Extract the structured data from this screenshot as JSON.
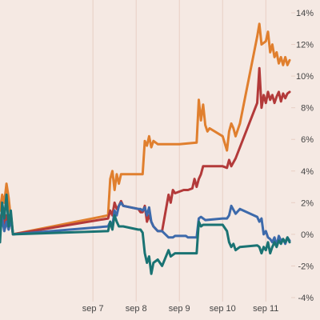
{
  "chart_data": {
    "type": "line",
    "title": "",
    "xlabel": "",
    "ylabel": "",
    "x_tick_labels": [
      "sep 7",
      "sep 8",
      "sep 9",
      "sep 10",
      "sep 11"
    ],
    "x_tick_values": [
      0,
      1,
      2,
      3,
      4
    ],
    "xlim": [
      -2.15,
      4.55
    ],
    "y_tick_labels": [
      "14%",
      "12%",
      "10%",
      "8%",
      "6%",
      "4%",
      "2%",
      "0%",
      "-2%",
      "-4%"
    ],
    "y_tick_values": [
      14,
      12,
      10,
      8,
      6,
      4,
      2,
      0,
      -2,
      -4
    ],
    "ylim": [
      -4,
      14
    ],
    "y_axis_side": "right",
    "grid": {
      "vertical": true,
      "horizontal": false
    },
    "legend": "none",
    "colors": {
      "background": "#f5e9e3",
      "grid": "#e8cfc4",
      "axis_text": "#444444"
    },
    "series": [
      {
        "color": "#e07f2e",
        "x": [
          -2.15,
          -2.1,
          -2.05,
          -2.0,
          -1.95,
          -1.9,
          -1.85,
          0.35,
          0.4,
          0.45,
          0.5,
          0.55,
          0.6,
          0.65,
          0.7,
          1.05,
          1.1,
          1.15,
          1.2,
          1.25,
          1.3,
          1.35,
          1.4,
          1.5,
          1.6,
          1.75,
          1.8,
          1.85,
          1.9,
          2.0,
          2.4,
          2.45,
          2.5,
          2.55,
          2.6,
          2.65,
          2.7,
          3.0,
          3.1,
          3.15,
          3.2,
          3.25,
          3.3,
          3.4,
          3.8,
          3.85,
          3.9,
          4.0,
          4.05,
          4.1,
          4.15,
          4.2,
          4.25,
          4.3,
          4.35,
          4.4,
          4.45,
          4.5,
          4.55
        ],
        "values": [
          1.5,
          2.5,
          2.0,
          3.2,
          2.3,
          1.0,
          0.0,
          1.2,
          3.5,
          4.0,
          2.8,
          3.8,
          3.2,
          3.8,
          3.8,
          3.8,
          3.8,
          3.8,
          5.9,
          5.6,
          6.2,
          5.5,
          5.9,
          5.7,
          5.7,
          5.7,
          5.7,
          5.7,
          5.7,
          5.7,
          5.8,
          8.5,
          7.2,
          8.2,
          6.9,
          6.5,
          6.7,
          6.2,
          5.3,
          6.5,
          7.0,
          6.7,
          6.2,
          7.0,
          12.5,
          13.3,
          12.0,
          12.2,
          12.8,
          11.5,
          12.0,
          11.2,
          11.5,
          10.8,
          11.2,
          10.7,
          11.2,
          10.7,
          11.0
        ]
      },
      {
        "color": "#b33a3a",
        "x": [
          -2.15,
          -2.1,
          -2.05,
          -2.0,
          -1.95,
          -1.9,
          -1.85,
          0.35,
          0.4,
          0.45,
          0.5,
          0.55,
          0.6,
          0.65,
          0.7,
          1.05,
          1.1,
          1.15,
          1.2,
          1.25,
          1.3,
          1.35,
          1.4,
          1.5,
          1.6,
          1.75,
          1.8,
          1.85,
          1.9,
          2.0,
          2.1,
          2.2,
          2.3,
          2.35,
          2.4,
          2.45,
          2.5,
          2.55,
          2.6,
          3.0,
          3.1,
          3.15,
          3.2,
          3.3,
          3.8,
          3.85,
          3.9,
          3.95,
          4.0,
          4.05,
          4.1,
          4.15,
          4.2,
          4.25,
          4.3,
          4.35,
          4.4,
          4.45,
          4.5,
          4.55
        ],
        "values": [
          0.8,
          1.5,
          0.5,
          1.2,
          0.5,
          1.3,
          0.0,
          1.0,
          1.5,
          1.2,
          2.0,
          1.6,
          1.8,
          2.1,
          1.8,
          1.6,
          1.4,
          1.4,
          1.8,
          0.8,
          1.2,
          0.8,
          0.5,
          0.2,
          0.2,
          2.5,
          2.0,
          2.8,
          2.6,
          2.7,
          2.8,
          2.8,
          2.9,
          3.5,
          3.0,
          3.5,
          3.8,
          4.3,
          4.3,
          4.3,
          4.2,
          4.7,
          4.3,
          4.8,
          8.3,
          10.5,
          8.0,
          8.8,
          8.3,
          9.0,
          8.5,
          8.8,
          8.3,
          8.7,
          9.0,
          8.4,
          8.9,
          8.6,
          8.9,
          9.0
        ]
      },
      {
        "color": "#3d6aab",
        "x": [
          -2.15,
          -2.1,
          -2.05,
          -2.0,
          -1.95,
          -1.9,
          -1.85,
          0.35,
          0.4,
          0.45,
          0.5,
          0.55,
          0.6,
          0.65,
          0.7,
          1.05,
          1.1,
          1.15,
          1.2,
          1.25,
          1.3,
          1.35,
          1.4,
          1.5,
          1.6,
          1.75,
          1.8,
          1.85,
          1.9,
          2.0,
          2.1,
          2.15,
          2.2,
          2.4,
          2.45,
          2.5,
          2.55,
          2.6,
          3.0,
          3.1,
          3.15,
          3.2,
          3.3,
          3.4,
          3.8,
          3.85,
          3.9,
          3.95,
          4.0,
          4.05,
          4.1,
          4.15,
          4.2,
          4.25,
          4.3,
          4.35,
          4.4,
          4.45,
          4.5,
          4.55
        ],
        "values": [
          0.0,
          1.0,
          0.2,
          0.8,
          0.3,
          1.0,
          0.0,
          0.5,
          0.8,
          0.5,
          1.5,
          1.2,
          1.8,
          2.0,
          1.8,
          1.6,
          1.6,
          1.5,
          1.7,
          1.2,
          1.7,
          0.8,
          0.5,
          0.2,
          0.2,
          -0.2,
          -0.2,
          -0.2,
          -0.1,
          -0.1,
          -0.1,
          -0.1,
          -0.2,
          -0.2,
          1.0,
          1.1,
          1.0,
          0.9,
          1.0,
          1.0,
          1.2,
          1.8,
          1.3,
          1.6,
          1.1,
          0.8,
          1.0,
          0.0,
          0.2,
          -0.2,
          -0.3,
          -0.5,
          -0.2,
          -0.7,
          -0.1,
          -0.4,
          -0.3,
          -0.6,
          -0.2,
          -0.4
        ]
      },
      {
        "color": "#1a7373",
        "x": [
          -2.15,
          -2.1,
          -2.05,
          -2.0,
          -1.95,
          -1.9,
          -1.85,
          0.35,
          0.4,
          0.45,
          0.5,
          0.55,
          0.6,
          0.65,
          0.7,
          1.05,
          1.1,
          1.15,
          1.2,
          1.25,
          1.3,
          1.35,
          1.4,
          1.5,
          1.6,
          1.75,
          1.8,
          1.85,
          1.9,
          2.0,
          2.1,
          2.3,
          2.4,
          2.45,
          2.5,
          2.55,
          2.6,
          3.0,
          3.1,
          3.15,
          3.2,
          3.25,
          3.3,
          3.4,
          3.8,
          3.85,
          3.9,
          3.95,
          4.0,
          4.05,
          4.1,
          4.15,
          4.2,
          4.25,
          4.3,
          4.35,
          4.4,
          4.45,
          4.5,
          4.55
        ],
        "values": [
          -0.5,
          2.0,
          1.0,
          2.5,
          0.5,
          1.5,
          0.0,
          0.2,
          0.8,
          0.3,
          1.2,
          0.8,
          0.5,
          0.5,
          0.5,
          0.3,
          0.3,
          0.1,
          -1.2,
          -1.8,
          -1.4,
          -2.5,
          -1.8,
          -1.6,
          -2.0,
          -1.0,
          -1.4,
          -1.3,
          -1.2,
          -1.2,
          -1.2,
          -1.2,
          -1.2,
          0.8,
          0.5,
          0.6,
          0.6,
          0.6,
          0.2,
          -0.5,
          -0.8,
          -0.6,
          -1.0,
          -0.8,
          -0.7,
          -0.8,
          -1.2,
          -0.8,
          -1.0,
          -0.5,
          -1.2,
          -0.8,
          -0.5,
          -0.8,
          -0.4,
          -0.6,
          -0.3,
          -0.5,
          -0.2,
          -0.5
        ]
      }
    ]
  }
}
